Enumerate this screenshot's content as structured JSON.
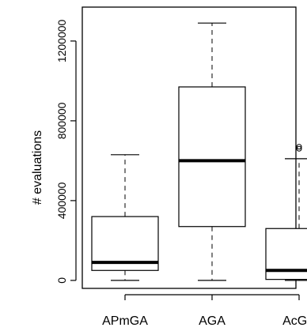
{
  "chart_data": {
    "type": "boxplot",
    "title": "",
    "xlabel": "",
    "ylabel": "# evaluations",
    "ylim": [
      -40000,
      1370000
    ],
    "yticks": [
      0,
      400000,
      800000,
      1200000
    ],
    "ytick_labels": [
      "0",
      "400000",
      "800000",
      "1200000"
    ],
    "grid": false,
    "legend": "none",
    "categories": [
      "APmGA",
      "AGA",
      "AcGA"
    ],
    "boxes": [
      {
        "category": "APmGA",
        "whisker_low": 0,
        "q1": 50000,
        "median": 90000,
        "q3": 320000,
        "whisker_high": 630000,
        "outliers": []
      },
      {
        "category": "AGA",
        "whisker_low": 0,
        "q1": 270000,
        "median": 600000,
        "q3": 970000,
        "whisker_high": 1290000,
        "outliers": []
      },
      {
        "category": "AcGA",
        "whisker_low": 0,
        "q1": 5000,
        "median": 50000,
        "q3": 260000,
        "whisker_high": 610000,
        "outliers": [
          660000,
          670000
        ]
      }
    ]
  }
}
